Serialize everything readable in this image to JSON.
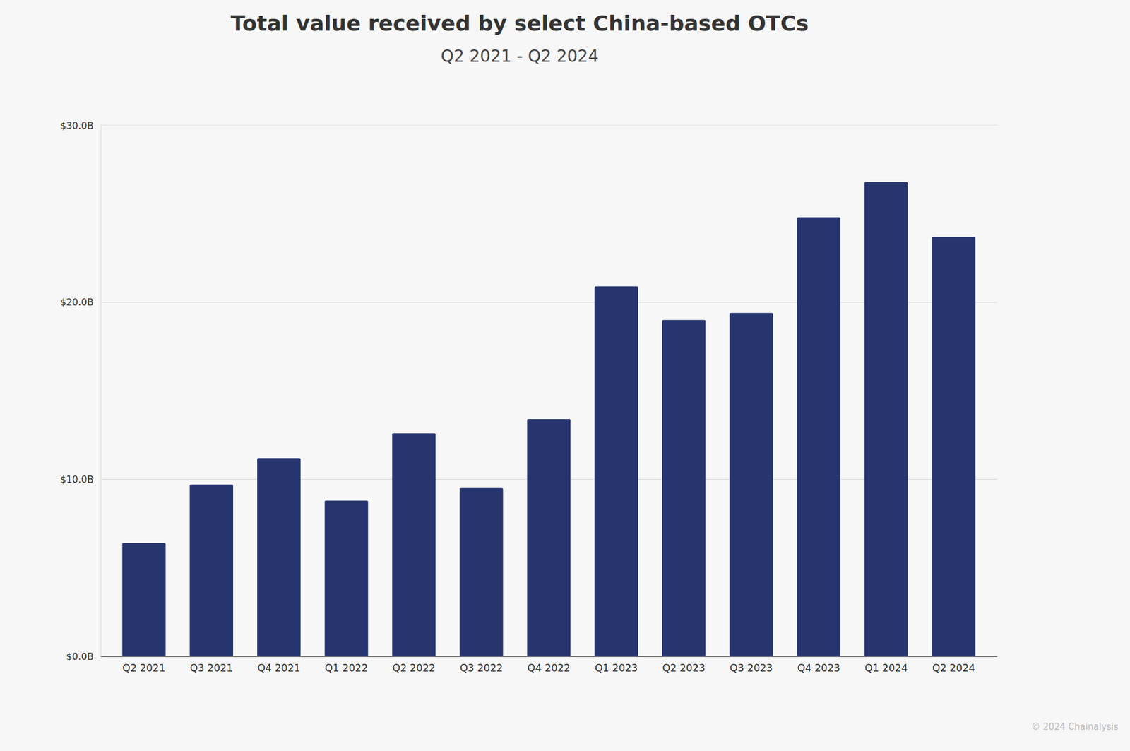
{
  "chart_data": {
    "type": "bar",
    "title": "Total value received by select China-based OTCs",
    "subtitle": "Q2 2021 - Q2 2024",
    "categories": [
      "Q2 2021",
      "Q3 2021",
      "Q4 2021",
      "Q1 2022",
      "Q2 2022",
      "Q3 2022",
      "Q4 2022",
      "Q1 2023",
      "Q2 2023",
      "Q3 2023",
      "Q4 2023",
      "Q1 2024",
      "Q2 2024"
    ],
    "values": [
      6.4,
      9.7,
      11.2,
      8.8,
      12.6,
      9.5,
      13.4,
      20.9,
      19.0,
      19.4,
      24.8,
      26.8,
      23.7
    ],
    "color": "#27356f",
    "ylim": [
      0,
      30
    ],
    "yticks": [
      {
        "value": 0,
        "label": "$0.0B"
      },
      {
        "value": 10,
        "label": "$10.0B"
      },
      {
        "value": 20,
        "label": "$20.0B"
      },
      {
        "value": 30,
        "label": "$30.0B"
      }
    ],
    "grid": true,
    "annotations": [
      "© 2024 Chainalysis"
    ]
  }
}
